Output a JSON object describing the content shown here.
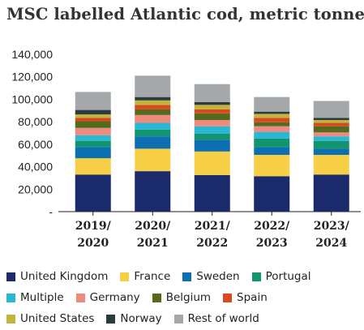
{
  "chart_data": {
    "type": "bar",
    "stacked": true,
    "title": "MSC labelled Atlantic cod, metric tonnes",
    "xlabel": "",
    "ylabel": "",
    "categories": [
      "2019/\n2020",
      "2020/\n2021",
      "2021/\n2022",
      "2022/\n2023",
      "2023/\n2024"
    ],
    "ylim": [
      0,
      140000
    ],
    "yticks": [
      "-",
      "20,000",
      "40,000",
      "60,000",
      "80,000",
      "100,000",
      "120,000",
      "140,000"
    ],
    "grid": false,
    "legend_position": "bottom",
    "series": [
      {
        "name": "United Kingdom",
        "color": "#1b2a6b",
        "values": [
          33000,
          36000,
          32500,
          31500,
          33000
        ]
      },
      {
        "name": "France",
        "color": "#f7cf46",
        "values": [
          14500,
          20000,
          21000,
          19000,
          17500
        ]
      },
      {
        "name": "Sweden",
        "color": "#0b6fb0",
        "values": [
          10000,
          11000,
          10500,
          7000,
          5500
        ]
      },
      {
        "name": "Portugal",
        "color": "#12946f",
        "values": [
          5500,
          6000,
          5500,
          7500,
          7000
        ]
      },
      {
        "name": "Multiple",
        "color": "#2bb6d4",
        "values": [
          5000,
          6000,
          6500,
          6000,
          4000
        ]
      },
      {
        "name": "Germany",
        "color": "#ee8a7e",
        "values": [
          6500,
          7000,
          5500,
          5000,
          3500
        ]
      },
      {
        "name": "Belgium",
        "color": "#546b1e",
        "values": [
          6000,
          5000,
          6000,
          3500,
          5500
        ]
      },
      {
        "name": "Spain",
        "color": "#d9481f",
        "values": [
          3000,
          4000,
          3500,
          4000,
          3000
        ]
      },
      {
        "name": "United States",
        "color": "#c1b53c",
        "values": [
          3000,
          4000,
          4000,
          3500,
          2500
        ]
      },
      {
        "name": "Norway",
        "color": "#2d3a40",
        "values": [
          4000,
          3000,
          2500,
          2000,
          2000
        ]
      },
      {
        "name": "Rest of world",
        "color": "#a5a8ab",
        "values": [
          16000,
          19000,
          16000,
          13000,
          15000
        ]
      }
    ]
  }
}
